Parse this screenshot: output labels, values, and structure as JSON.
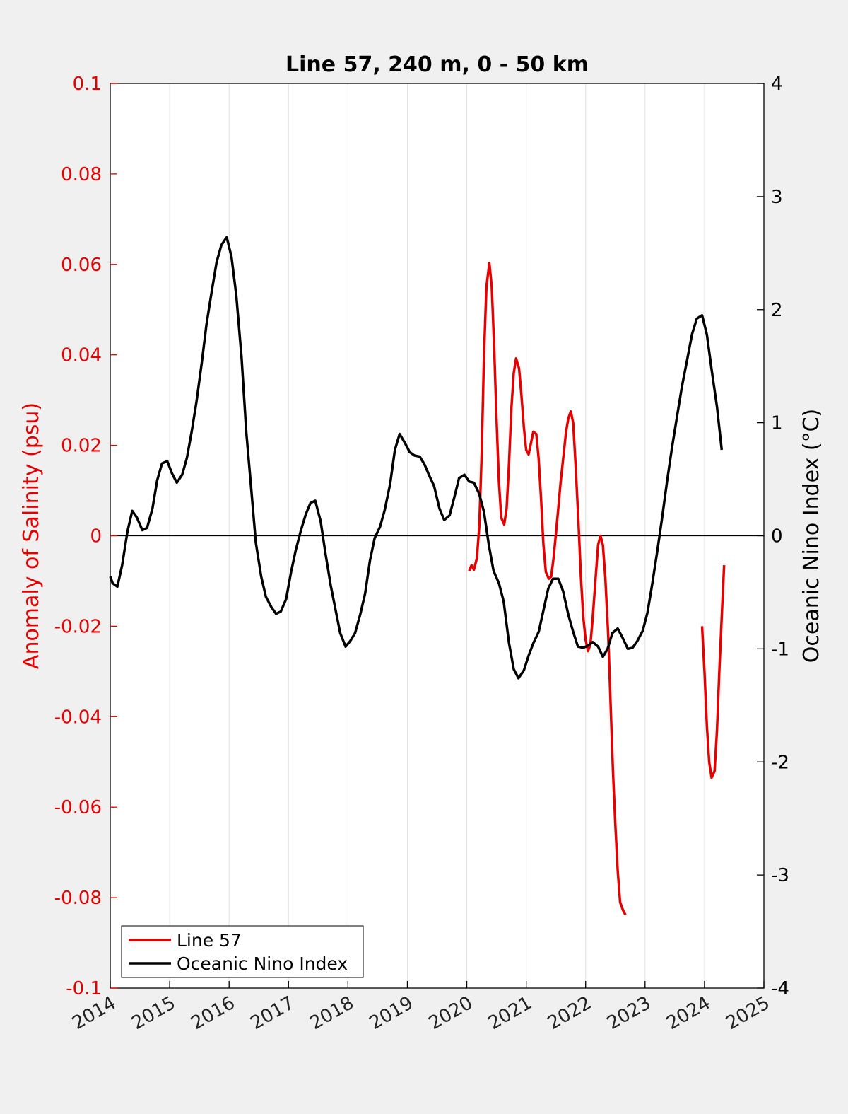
{
  "chart_data": {
    "type": "line",
    "title": "Line 57, 240 m, 0 - 50 km",
    "ylabel_left": "Anomaly of Salinity (psu)",
    "ylabel_right": "Oceanic Nino Index (°C)",
    "xlim": [
      2014,
      2025
    ],
    "ylim_left": [
      -0.1,
      0.1
    ],
    "ylim_right": [
      -4,
      4
    ],
    "x_ticks": [
      "2014",
      "2015",
      "2016",
      "2017",
      "2018",
      "2019",
      "2020",
      "2021",
      "2022",
      "2023",
      "2024",
      "2025"
    ],
    "y_ticks_left": [
      "0.1",
      "0.08",
      "0.06",
      "0.04",
      "0.02",
      "0",
      "-0.02",
      "-0.04",
      "-0.06",
      "-0.08",
      "-0.1"
    ],
    "y_ticks_right": [
      "4",
      "3",
      "2",
      "1",
      "0",
      "-1",
      "-2",
      "-3",
      "-4"
    ],
    "vertical_grid": true,
    "zero_line": true,
    "legend_position": "bottom-left",
    "colors": {
      "line57": "#e60000",
      "oni": "#000000"
    },
    "series": [
      {
        "name": "Line 57",
        "axis": "left",
        "segments": [
          [
            [
              2020.04,
              -0.0078
            ],
            [
              2020.08,
              -0.0065
            ],
            [
              2020.12,
              -0.0075
            ],
            [
              2020.17,
              -0.005
            ],
            [
              2020.21,
              0.002
            ],
            [
              2020.25,
              0.018
            ],
            [
              2020.29,
              0.04
            ],
            [
              2020.33,
              0.055
            ],
            [
              2020.38,
              0.0603
            ],
            [
              2020.42,
              0.055
            ],
            [
              2020.46,
              0.042
            ],
            [
              2020.5,
              0.026
            ],
            [
              2020.54,
              0.012
            ],
            [
              2020.58,
              0.004
            ],
            [
              2020.63,
              0.0025
            ],
            [
              2020.67,
              0.006
            ],
            [
              2020.71,
              0.016
            ],
            [
              2020.75,
              0.028
            ],
            [
              2020.79,
              0.036
            ],
            [
              2020.83,
              0.0392
            ],
            [
              2020.88,
              0.037
            ],
            [
              2020.92,
              0.031
            ],
            [
              2020.96,
              0.024
            ],
            [
              2021.0,
              0.019
            ],
            [
              2021.04,
              0.018
            ],
            [
              2021.08,
              0.0205
            ],
            [
              2021.12,
              0.023
            ],
            [
              2021.17,
              0.0225
            ],
            [
              2021.21,
              0.017
            ],
            [
              2021.25,
              0.008
            ],
            [
              2021.29,
              -0.002
            ],
            [
              2021.33,
              -0.008
            ],
            [
              2021.38,
              -0.0095
            ],
            [
              2021.42,
              -0.009
            ],
            [
              2021.46,
              -0.005
            ],
            [
              2021.5,
              0.0005
            ],
            [
              2021.54,
              0.006
            ],
            [
              2021.58,
              0.012
            ],
            [
              2021.63,
              0.018
            ],
            [
              2021.67,
              0.023
            ],
            [
              2021.71,
              0.026
            ],
            [
              2021.75,
              0.0275
            ],
            [
              2021.79,
              0.025
            ],
            [
              2021.83,
              0.016
            ],
            [
              2021.88,
              0.003
            ],
            [
              2021.92,
              -0.009
            ],
            [
              2021.96,
              -0.018
            ],
            [
              2022.0,
              -0.023
            ],
            [
              2022.04,
              -0.0255
            ],
            [
              2022.08,
              -0.024
            ],
            [
              2022.12,
              -0.018
            ],
            [
              2022.17,
              -0.009
            ],
            [
              2022.21,
              -0.002
            ],
            [
              2022.25,
              0.0
            ],
            [
              2022.29,
              -0.002
            ],
            [
              2022.33,
              -0.009
            ],
            [
              2022.38,
              -0.022
            ],
            [
              2022.42,
              -0.037
            ],
            [
              2022.46,
              -0.052
            ],
            [
              2022.5,
              -0.064
            ],
            [
              2022.54,
              -0.074
            ],
            [
              2022.58,
              -0.081
            ],
            [
              2022.63,
              -0.0828
            ],
            [
              2022.67,
              -0.0838
            ]
          ],
          [
            [
              2023.96,
              -0.02
            ],
            [
              2024.0,
              -0.03
            ],
            [
              2024.04,
              -0.042
            ],
            [
              2024.08,
              -0.05
            ],
            [
              2024.12,
              -0.0535
            ],
            [
              2024.17,
              -0.052
            ],
            [
              2024.21,
              -0.043
            ],
            [
              2024.25,
              -0.03
            ],
            [
              2024.29,
              -0.018
            ],
            [
              2024.33,
              -0.0065
            ]
          ]
        ]
      },
      {
        "name": "Oceanic Nino Index",
        "axis": "right",
        "segments": [
          [
            [
              2014.0,
              -0.36
            ],
            [
              2014.04,
              -0.42
            ],
            [
              2014.12,
              -0.45
            ],
            [
              2014.2,
              -0.26
            ],
            [
              2014.29,
              0.04
            ],
            [
              2014.37,
              0.22
            ],
            [
              2014.45,
              0.16
            ],
            [
              2014.54,
              0.05
            ],
            [
              2014.62,
              0.07
            ],
            [
              2014.71,
              0.24
            ],
            [
              2014.79,
              0.49
            ],
            [
              2014.87,
              0.64
            ],
            [
              2014.96,
              0.66
            ],
            [
              2015.04,
              0.55
            ],
            [
              2015.12,
              0.47
            ],
            [
              2015.21,
              0.54
            ],
            [
              2015.29,
              0.69
            ],
            [
              2015.37,
              0.92
            ],
            [
              2015.45,
              1.18
            ],
            [
              2015.54,
              1.53
            ],
            [
              2015.62,
              1.87
            ],
            [
              2015.71,
              2.17
            ],
            [
              2015.79,
              2.42
            ],
            [
              2015.87,
              2.57
            ],
            [
              2015.96,
              2.64
            ],
            [
              2016.04,
              2.47
            ],
            [
              2016.12,
              2.13
            ],
            [
              2016.21,
              1.58
            ],
            [
              2016.29,
              0.91
            ],
            [
              2016.37,
              0.43
            ],
            [
              2016.45,
              -0.06
            ],
            [
              2016.54,
              -0.36
            ],
            [
              2016.62,
              -0.54
            ],
            [
              2016.71,
              -0.63
            ],
            [
              2016.79,
              -0.69
            ],
            [
              2016.87,
              -0.67
            ],
            [
              2016.96,
              -0.56
            ],
            [
              2017.04,
              -0.33
            ],
            [
              2017.12,
              -0.13
            ],
            [
              2017.21,
              0.05
            ],
            [
              2017.29,
              0.19
            ],
            [
              2017.37,
              0.29
            ],
            [
              2017.45,
              0.31
            ],
            [
              2017.54,
              0.13
            ],
            [
              2017.62,
              -0.15
            ],
            [
              2017.71,
              -0.44
            ],
            [
              2017.79,
              -0.65
            ],
            [
              2017.87,
              -0.86
            ],
            [
              2017.96,
              -0.98
            ],
            [
              2018.04,
              -0.93
            ],
            [
              2018.12,
              -0.86
            ],
            [
              2018.21,
              -0.69
            ],
            [
              2018.29,
              -0.51
            ],
            [
              2018.37,
              -0.22
            ],
            [
              2018.45,
              -0.02
            ],
            [
              2018.54,
              0.08
            ],
            [
              2018.62,
              0.23
            ],
            [
              2018.71,
              0.46
            ],
            [
              2018.79,
              0.76
            ],
            [
              2018.87,
              0.9
            ],
            [
              2018.96,
              0.82
            ],
            [
              2019.04,
              0.74
            ],
            [
              2019.12,
              0.71
            ],
            [
              2019.21,
              0.7
            ],
            [
              2019.29,
              0.63
            ],
            [
              2019.37,
              0.53
            ],
            [
              2019.45,
              0.44
            ],
            [
              2019.54,
              0.24
            ],
            [
              2019.62,
              0.14
            ],
            [
              2019.71,
              0.18
            ],
            [
              2019.79,
              0.34
            ],
            [
              2019.87,
              0.51
            ],
            [
              2019.96,
              0.54
            ],
            [
              2020.04,
              0.48
            ],
            [
              2020.12,
              0.47
            ],
            [
              2020.21,
              0.37
            ],
            [
              2020.29,
              0.21
            ],
            [
              2020.37,
              -0.08
            ],
            [
              2020.45,
              -0.31
            ],
            [
              2020.54,
              -0.42
            ],
            [
              2020.62,
              -0.58
            ],
            [
              2020.71,
              -0.95
            ],
            [
              2020.79,
              -1.18
            ],
            [
              2020.87,
              -1.26
            ],
            [
              2020.96,
              -1.19
            ],
            [
              2021.04,
              -1.06
            ],
            [
              2021.12,
              -0.95
            ],
            [
              2021.21,
              -0.85
            ],
            [
              2021.29,
              -0.66
            ],
            [
              2021.37,
              -0.47
            ],
            [
              2021.45,
              -0.38
            ],
            [
              2021.54,
              -0.38
            ],
            [
              2021.62,
              -0.49
            ],
            [
              2021.71,
              -0.7
            ],
            [
              2021.79,
              -0.85
            ],
            [
              2021.87,
              -0.98
            ],
            [
              2021.96,
              -0.99
            ],
            [
              2022.04,
              -0.97
            ],
            [
              2022.12,
              -0.94
            ],
            [
              2022.21,
              -0.98
            ],
            [
              2022.29,
              -1.07
            ],
            [
              2022.37,
              -1.0
            ],
            [
              2022.45,
              -0.86
            ],
            [
              2022.54,
              -0.82
            ],
            [
              2022.62,
              -0.9
            ],
            [
              2022.71,
              -1.0
            ],
            [
              2022.79,
              -0.99
            ],
            [
              2022.87,
              -0.93
            ],
            [
              2022.96,
              -0.84
            ],
            [
              2023.04,
              -0.68
            ],
            [
              2023.12,
              -0.43
            ],
            [
              2023.21,
              -0.12
            ],
            [
              2023.29,
              0.17
            ],
            [
              2023.37,
              0.48
            ],
            [
              2023.45,
              0.77
            ],
            [
              2023.54,
              1.06
            ],
            [
              2023.62,
              1.32
            ],
            [
              2023.71,
              1.56
            ],
            [
              2023.79,
              1.78
            ],
            [
              2023.87,
              1.92
            ],
            [
              2023.96,
              1.95
            ],
            [
              2024.04,
              1.78
            ],
            [
              2024.12,
              1.47
            ],
            [
              2024.21,
              1.14
            ],
            [
              2024.29,
              0.76
            ]
          ]
        ]
      }
    ]
  }
}
